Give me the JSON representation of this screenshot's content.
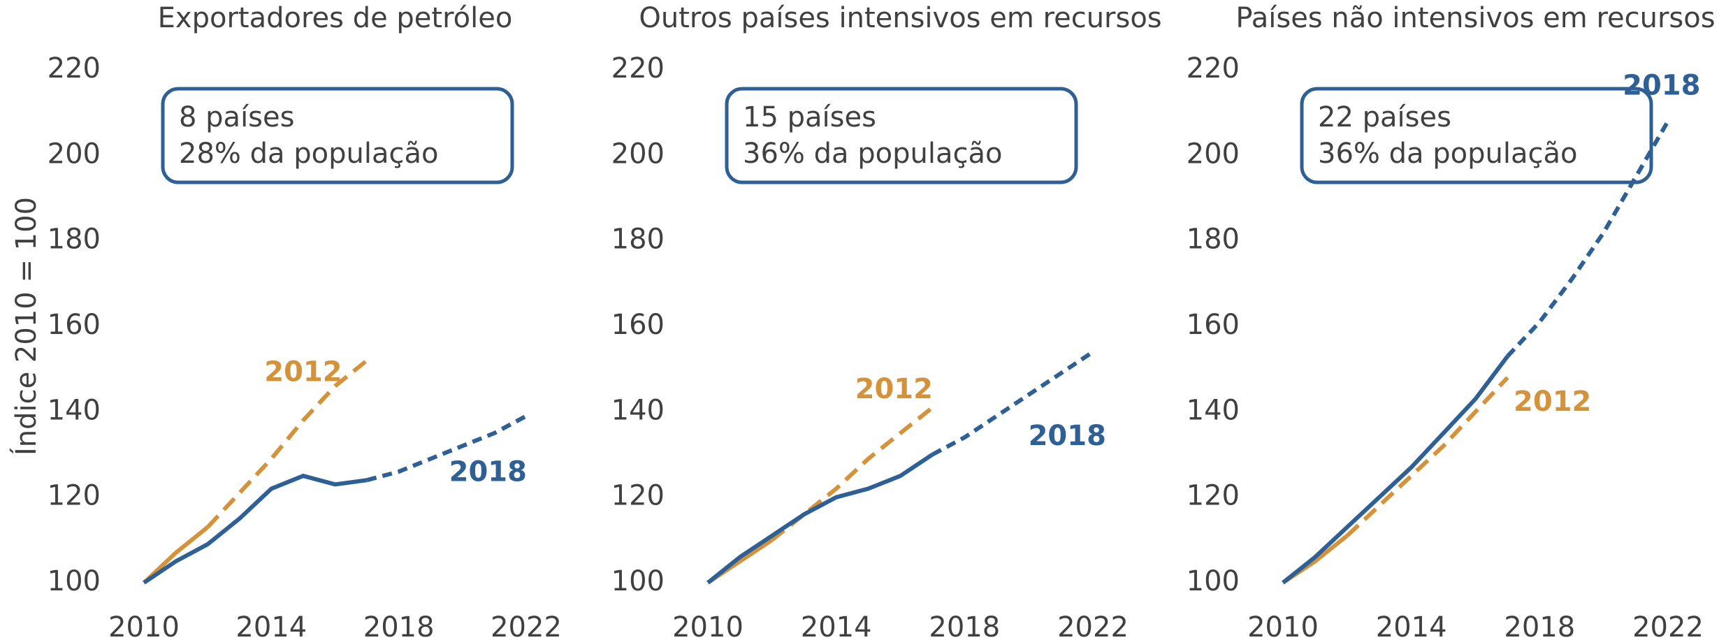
{
  "chart_data": [
    {
      "type": "line",
      "title": "Exportadores de petróleo",
      "ylabel": "Índice 2010 = 100",
      "annotation": [
        "8 países",
        "28% da população"
      ],
      "x": [
        2010,
        2011,
        2012,
        2013,
        2014,
        2015,
        2016,
        2017,
        2018,
        2019,
        2020,
        2021,
        2022
      ],
      "series": [
        {
          "name": "2012",
          "color": "#d4933a",
          "solid_until": 2012,
          "values": [
            100,
            107,
            113,
            121,
            129,
            138,
            146,
            152,
            null,
            null,
            null,
            null,
            null
          ]
        },
        {
          "name": "2018",
          "color": "#2e6096",
          "solid_until": 2017,
          "values": [
            100,
            105,
            109,
            115,
            122,
            125,
            123,
            124,
            126,
            129,
            132,
            135,
            139
          ]
        }
      ],
      "xlim": [
        2010,
        2022
      ],
      "xticks": [
        2010,
        2014,
        2018,
        2022
      ],
      "ylim": [
        100,
        220
      ],
      "yticks": [
        100,
        120,
        140,
        160,
        180,
        200,
        220
      ]
    },
    {
      "type": "line",
      "title": "Outros países intensivos em recursos",
      "annotation": [
        "15 países",
        "36% da população"
      ],
      "x": [
        2010,
        2011,
        2012,
        2013,
        2014,
        2015,
        2016,
        2017,
        2018,
        2019,
        2020,
        2021,
        2022
      ],
      "series": [
        {
          "name": "2012",
          "color": "#d4933a",
          "solid_until": 2012,
          "values": [
            100,
            105,
            110,
            116,
            122,
            129,
            135,
            141,
            null,
            null,
            null,
            null,
            null
          ]
        },
        {
          "name": "2018",
          "color": "#2e6096",
          "solid_until": 2017,
          "values": [
            100,
            106,
            111,
            116,
            120,
            122,
            125,
            130,
            134,
            139,
            144,
            149,
            154
          ]
        }
      ],
      "xlim": [
        2010,
        2022
      ],
      "xticks": [
        2010,
        2014,
        2018,
        2022
      ],
      "ylim": [
        100,
        220
      ],
      "yticks": [
        100,
        120,
        140,
        160,
        180,
        200,
        220
      ]
    },
    {
      "type": "line",
      "title": "Países não intensivos em recursos",
      "annotation": [
        "22 países",
        "36% da população"
      ],
      "x": [
        2010,
        2011,
        2012,
        2013,
        2014,
        2015,
        2016,
        2017,
        2018,
        2019,
        2020,
        2021,
        2022
      ],
      "series": [
        {
          "name": "2012",
          "color": "#d4933a",
          "solid_until": 2012,
          "values": [
            100,
            105,
            111,
            118,
            125,
            132,
            140,
            148,
            null,
            null,
            null,
            null,
            null
          ]
        },
        {
          "name": "2018",
          "color": "#2e6096",
          "solid_until": 2017,
          "values": [
            100,
            106,
            113,
            120,
            127,
            135,
            143,
            153,
            161,
            171,
            182,
            195,
            208
          ]
        }
      ],
      "xlim": [
        2010,
        2022
      ],
      "xticks": [
        2010,
        2014,
        2018,
        2022
      ],
      "ylim": [
        100,
        220
      ],
      "yticks": [
        100,
        120,
        140,
        160,
        180,
        200,
        220
      ]
    }
  ]
}
